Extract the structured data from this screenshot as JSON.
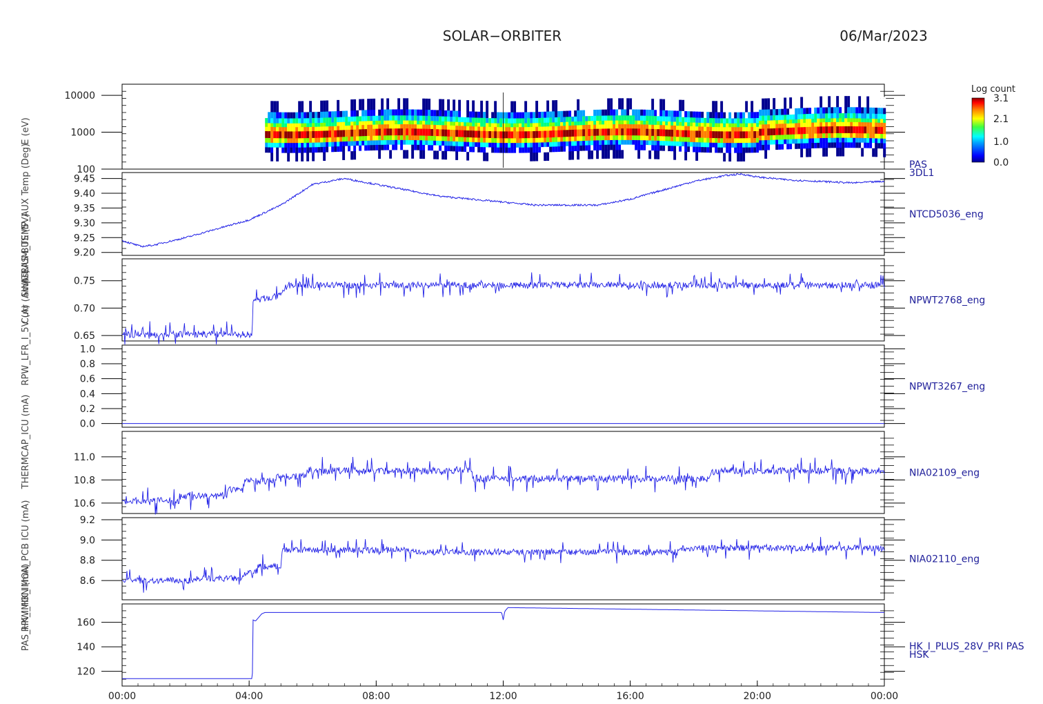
{
  "header": {
    "mission": "SOLAR−ORBITER",
    "date": "06/Mar/2023"
  },
  "yaxis_overlap_labels": [
    "E (eV)",
    "ATRIUM_TEMP_AUX Temp (Deg)",
    "SWA-EAS-BUS (5V)",
    "Curr (Amps)",
    "RPW_LFR_I_5V (A)",
    "THERMCAP_ICU (mA)",
    "RPW_HK_IMON_PCB ICU (mA)",
    "PAS_HK_IMON (mA)"
  ],
  "colors": {
    "line": "#1f1fe6",
    "label": "#1f1f9a",
    "axis": "#000000",
    "colorbar": [
      "#ffffff",
      "#00008f",
      "#0000ff",
      "#00a0ff",
      "#00ffff",
      "#00ff80",
      "#80ff00",
      "#ffff00",
      "#ff8000",
      "#ff0000",
      "#8f0000"
    ]
  },
  "chart_data": [
    {
      "type": "heatmap",
      "label": [
        "PAS",
        "3DL1"
      ],
      "ylabel": "E (eV)",
      "yscale": "log",
      "ylim": [
        100,
        20000
      ],
      "yticks": [
        "10000",
        "1000",
        "100"
      ],
      "yticks_values": [
        10000,
        1000,
        100
      ],
      "data_start": "04:30",
      "data_end": "24:00",
      "peak_energy_eV": 900,
      "colorbar": {
        "title": "Log count",
        "ticks": [
          "3.1",
          "2.1",
          "1.0",
          "0.0"
        ],
        "tick_values": [
          3.1,
          2.1,
          1.0,
          0.0
        ],
        "range": [
          0.0,
          3.1
        ]
      }
    },
    {
      "type": "line",
      "label": "NTCD5036_eng",
      "ylabel": "ATRIUM_TEMP_AUX Temp (Deg)",
      "ylim": [
        9.19,
        9.47
      ],
      "yticks": [
        "9.45",
        "9.40",
        "9.35",
        "9.30",
        "9.25",
        "9.20"
      ],
      "yticks_values": [
        9.45,
        9.4,
        9.35,
        9.3,
        9.25,
        9.2
      ],
      "x": [
        0,
        0.6,
        1,
        2,
        3,
        4,
        5,
        6,
        7,
        8,
        9,
        10,
        11,
        12,
        13,
        14,
        15,
        16,
        17,
        18,
        19,
        19.5,
        20,
        21,
        22,
        23,
        24
      ],
      "y": [
        9.24,
        9.22,
        9.225,
        9.25,
        9.28,
        9.31,
        9.36,
        9.43,
        9.45,
        9.43,
        9.41,
        9.39,
        9.38,
        9.37,
        9.36,
        9.36,
        9.36,
        9.38,
        9.41,
        9.44,
        9.46,
        9.465,
        9.455,
        9.445,
        9.44,
        9.435,
        9.44
      ]
    },
    {
      "type": "line",
      "label": "NPWT2768_eng",
      "ylabel": "SWA-EAS-BUS (5V)",
      "ylim": [
        0.64,
        0.79
      ],
      "yticks": [
        "0.75",
        "0.70",
        "0.65"
      ],
      "yticks_values": [
        0.75,
        0.7,
        0.65
      ],
      "x": [
        0,
        4.1,
        4.12,
        4.5,
        5.0,
        5.2,
        24
      ],
      "y": [
        0.652,
        0.652,
        0.712,
        0.718,
        0.722,
        0.742,
        0.742
      ],
      "noise_amplitude": 0.012
    },
    {
      "type": "line",
      "label": "NPWT3267_eng",
      "ylabel": "RPW_LFR_I_5V (A)",
      "ylim": [
        -0.05,
        1.05
      ],
      "yticks": [
        "1.0",
        "0.8",
        "0.6",
        "0.4",
        "0.2",
        "0.0"
      ],
      "yticks_values": [
        1.0,
        0.8,
        0.6,
        0.4,
        0.2,
        0.0
      ],
      "x": [
        0,
        24
      ],
      "y": [
        0.0,
        0.0
      ]
    },
    {
      "type": "line",
      "label": "NIA02109_eng",
      "ylabel": "THERMCAP_ICU (mA)",
      "ylim": [
        10.51,
        11.22
      ],
      "yticks": [
        "11.0",
        "10.8",
        "10.6"
      ],
      "yticks_values": [
        11.0,
        10.8,
        10.6
      ],
      "x": [
        0,
        1.8,
        1.85,
        3.3,
        3.35,
        3.8,
        3.85,
        4.8,
        4.85,
        5.8,
        5.85,
        11,
        11.05,
        18.5,
        18.55,
        24
      ],
      "y": [
        10.62,
        10.62,
        10.66,
        10.66,
        10.72,
        10.72,
        10.79,
        10.79,
        10.83,
        10.83,
        10.88,
        10.88,
        10.81,
        10.81,
        10.88,
        10.88
      ],
      "noise_amplitude": 0.06
    },
    {
      "type": "line",
      "label": "NIA02110_eng",
      "ylabel": "RPW_HK_IMON_PCB ICU (mA)",
      "ylim": [
        8.41,
        9.22
      ],
      "yticks": [
        "9.2",
        "9.0",
        "8.8",
        "8.6"
      ],
      "yticks_values": [
        9.2,
        9.0,
        8.8,
        8.6
      ],
      "x": [
        0,
        2.3,
        2.35,
        3.8,
        3.85,
        4.2,
        4.25,
        5.0,
        5.05,
        9,
        9.05,
        17.5,
        17.55,
        24
      ],
      "y": [
        8.6,
        8.6,
        8.62,
        8.62,
        8.67,
        8.67,
        8.74,
        8.74,
        8.9,
        8.9,
        8.88,
        8.88,
        8.92,
        8.92
      ],
      "noise_amplitude": 0.06
    },
    {
      "type": "line",
      "label": [
        "HK_I_PLUS_28V_PRI PAS",
        "HSK"
      ],
      "ylabel": "PAS_HK_IMON (mA)",
      "ylim": [
        108,
        175
      ],
      "yticks": [
        "160",
        "140",
        "120"
      ],
      "yticks_values": [
        160,
        140,
        120
      ],
      "x": [
        0,
        4.1,
        4.12,
        4.2,
        4.4,
        4.5,
        11.95,
        12.0,
        12.05,
        12.15,
        24
      ],
      "y": [
        114,
        114,
        162,
        161,
        167,
        168,
        168,
        162,
        169,
        172,
        168
      ]
    }
  ],
  "xaxis": {
    "ticks": [
      "00:00",
      "04:00",
      "08:00",
      "12:00",
      "16:00",
      "20:00",
      "00:00"
    ],
    "tick_hours": [
      0,
      4,
      8,
      12,
      16,
      20,
      24
    ]
  }
}
